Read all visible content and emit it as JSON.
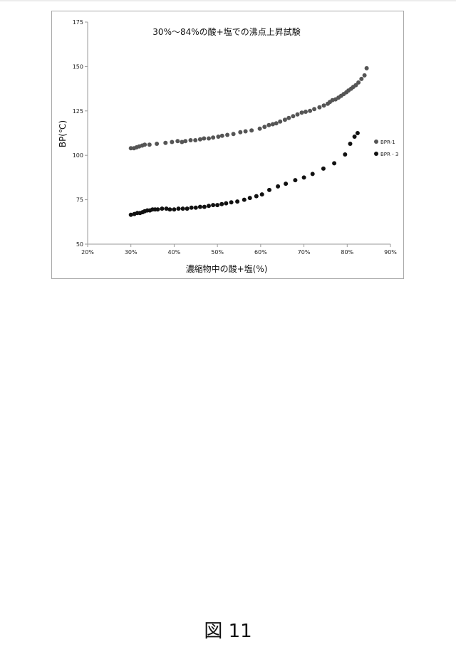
{
  "figure": {
    "label": "図 11"
  },
  "chart_data": {
    "type": "scatter",
    "title": "30%〜84%の酸+塩での沸点上昇試験",
    "xlabel": "濃縮物中の酸+塩(%)",
    "ylabel": "BP(℃)",
    "xlim": [
      20,
      90
    ],
    "ylim": [
      50,
      175
    ],
    "xticks": [
      20,
      30,
      40,
      50,
      60,
      70,
      80,
      90
    ],
    "xtick_labels": [
      "20%",
      "30%",
      "40%",
      "50%",
      "60%",
      "70%",
      "80%",
      "90%"
    ],
    "yticks": [
      50,
      75,
      100,
      125,
      150,
      175
    ],
    "ytick_labels": [
      "50",
      "75",
      "100",
      "125",
      "150",
      "175"
    ],
    "grid": false,
    "legend_position": "right",
    "series": [
      {
        "name": "BPR-1",
        "color": "#555555",
        "x": [
          30.0,
          30.7,
          31.3,
          31.9,
          32.6,
          33.2,
          34.3,
          36.0,
          38.0,
          39.5,
          40.8,
          41.8,
          42.6,
          43.8,
          44.9,
          46.0,
          46.9,
          48.0,
          49.0,
          50.2,
          51.1,
          52.3,
          53.7,
          55.3,
          56.5,
          57.9,
          59.8,
          60.9,
          61.9,
          62.8,
          63.6,
          64.5,
          65.6,
          66.5,
          67.5,
          68.5,
          69.5,
          70.4,
          71.4,
          72.4,
          73.6,
          74.6,
          75.5,
          76.0,
          76.6,
          77.3,
          78.0,
          78.6,
          79.2,
          79.8,
          80.3,
          80.9,
          81.4,
          82.0,
          82.6,
          83.3,
          84.0,
          84.5
        ],
        "y": [
          104,
          104,
          104.5,
          105,
          105.5,
          106,
          106,
          106.5,
          107,
          107.5,
          108,
          107.5,
          108,
          108.5,
          108.5,
          109,
          109.5,
          109.5,
          110,
          110.5,
          111,
          111.5,
          112,
          113,
          113.5,
          114,
          115,
          116,
          117,
          117.5,
          118,
          119,
          120,
          121,
          122,
          123,
          124,
          124.5,
          125,
          126,
          127,
          128,
          129,
          130,
          131,
          131.5,
          132.5,
          133.5,
          134.5,
          135.5,
          136.5,
          137.5,
          138.5,
          139.5,
          141,
          143,
          145,
          149
        ]
      },
      {
        "name": "BPR - 3",
        "color": "#111111",
        "x": [
          30.0,
          30.8,
          31.5,
          32.1,
          32.7,
          33.2,
          33.8,
          34.4,
          35.0,
          35.6,
          36.2,
          37.2,
          38.2,
          39.0,
          40.0,
          41.0,
          42.0,
          43.0,
          44.0,
          45.0,
          46.0,
          47.0,
          48.0,
          49.0,
          50.0,
          51.0,
          52.0,
          53.2,
          54.6,
          56.2,
          57.5,
          59.0,
          60.3,
          62.0,
          64.0,
          65.8,
          68.0,
          70.0,
          72.0,
          74.5,
          77.0,
          79.5,
          80.7,
          81.7,
          82.4
        ],
        "y": [
          66.5,
          67,
          67.5,
          67.5,
          68,
          68.5,
          69,
          69,
          69.5,
          69.5,
          69.5,
          70,
          70,
          69.5,
          69.5,
          70,
          70,
          70,
          70.5,
          70.5,
          71,
          71,
          71.5,
          72,
          72,
          72.5,
          73,
          73.5,
          74,
          75,
          76,
          77,
          78,
          80.5,
          82.5,
          84,
          86,
          87.5,
          89.5,
          92.5,
          95.5,
          100.5,
          106.5,
          110.5,
          112.5
        ]
      }
    ]
  }
}
